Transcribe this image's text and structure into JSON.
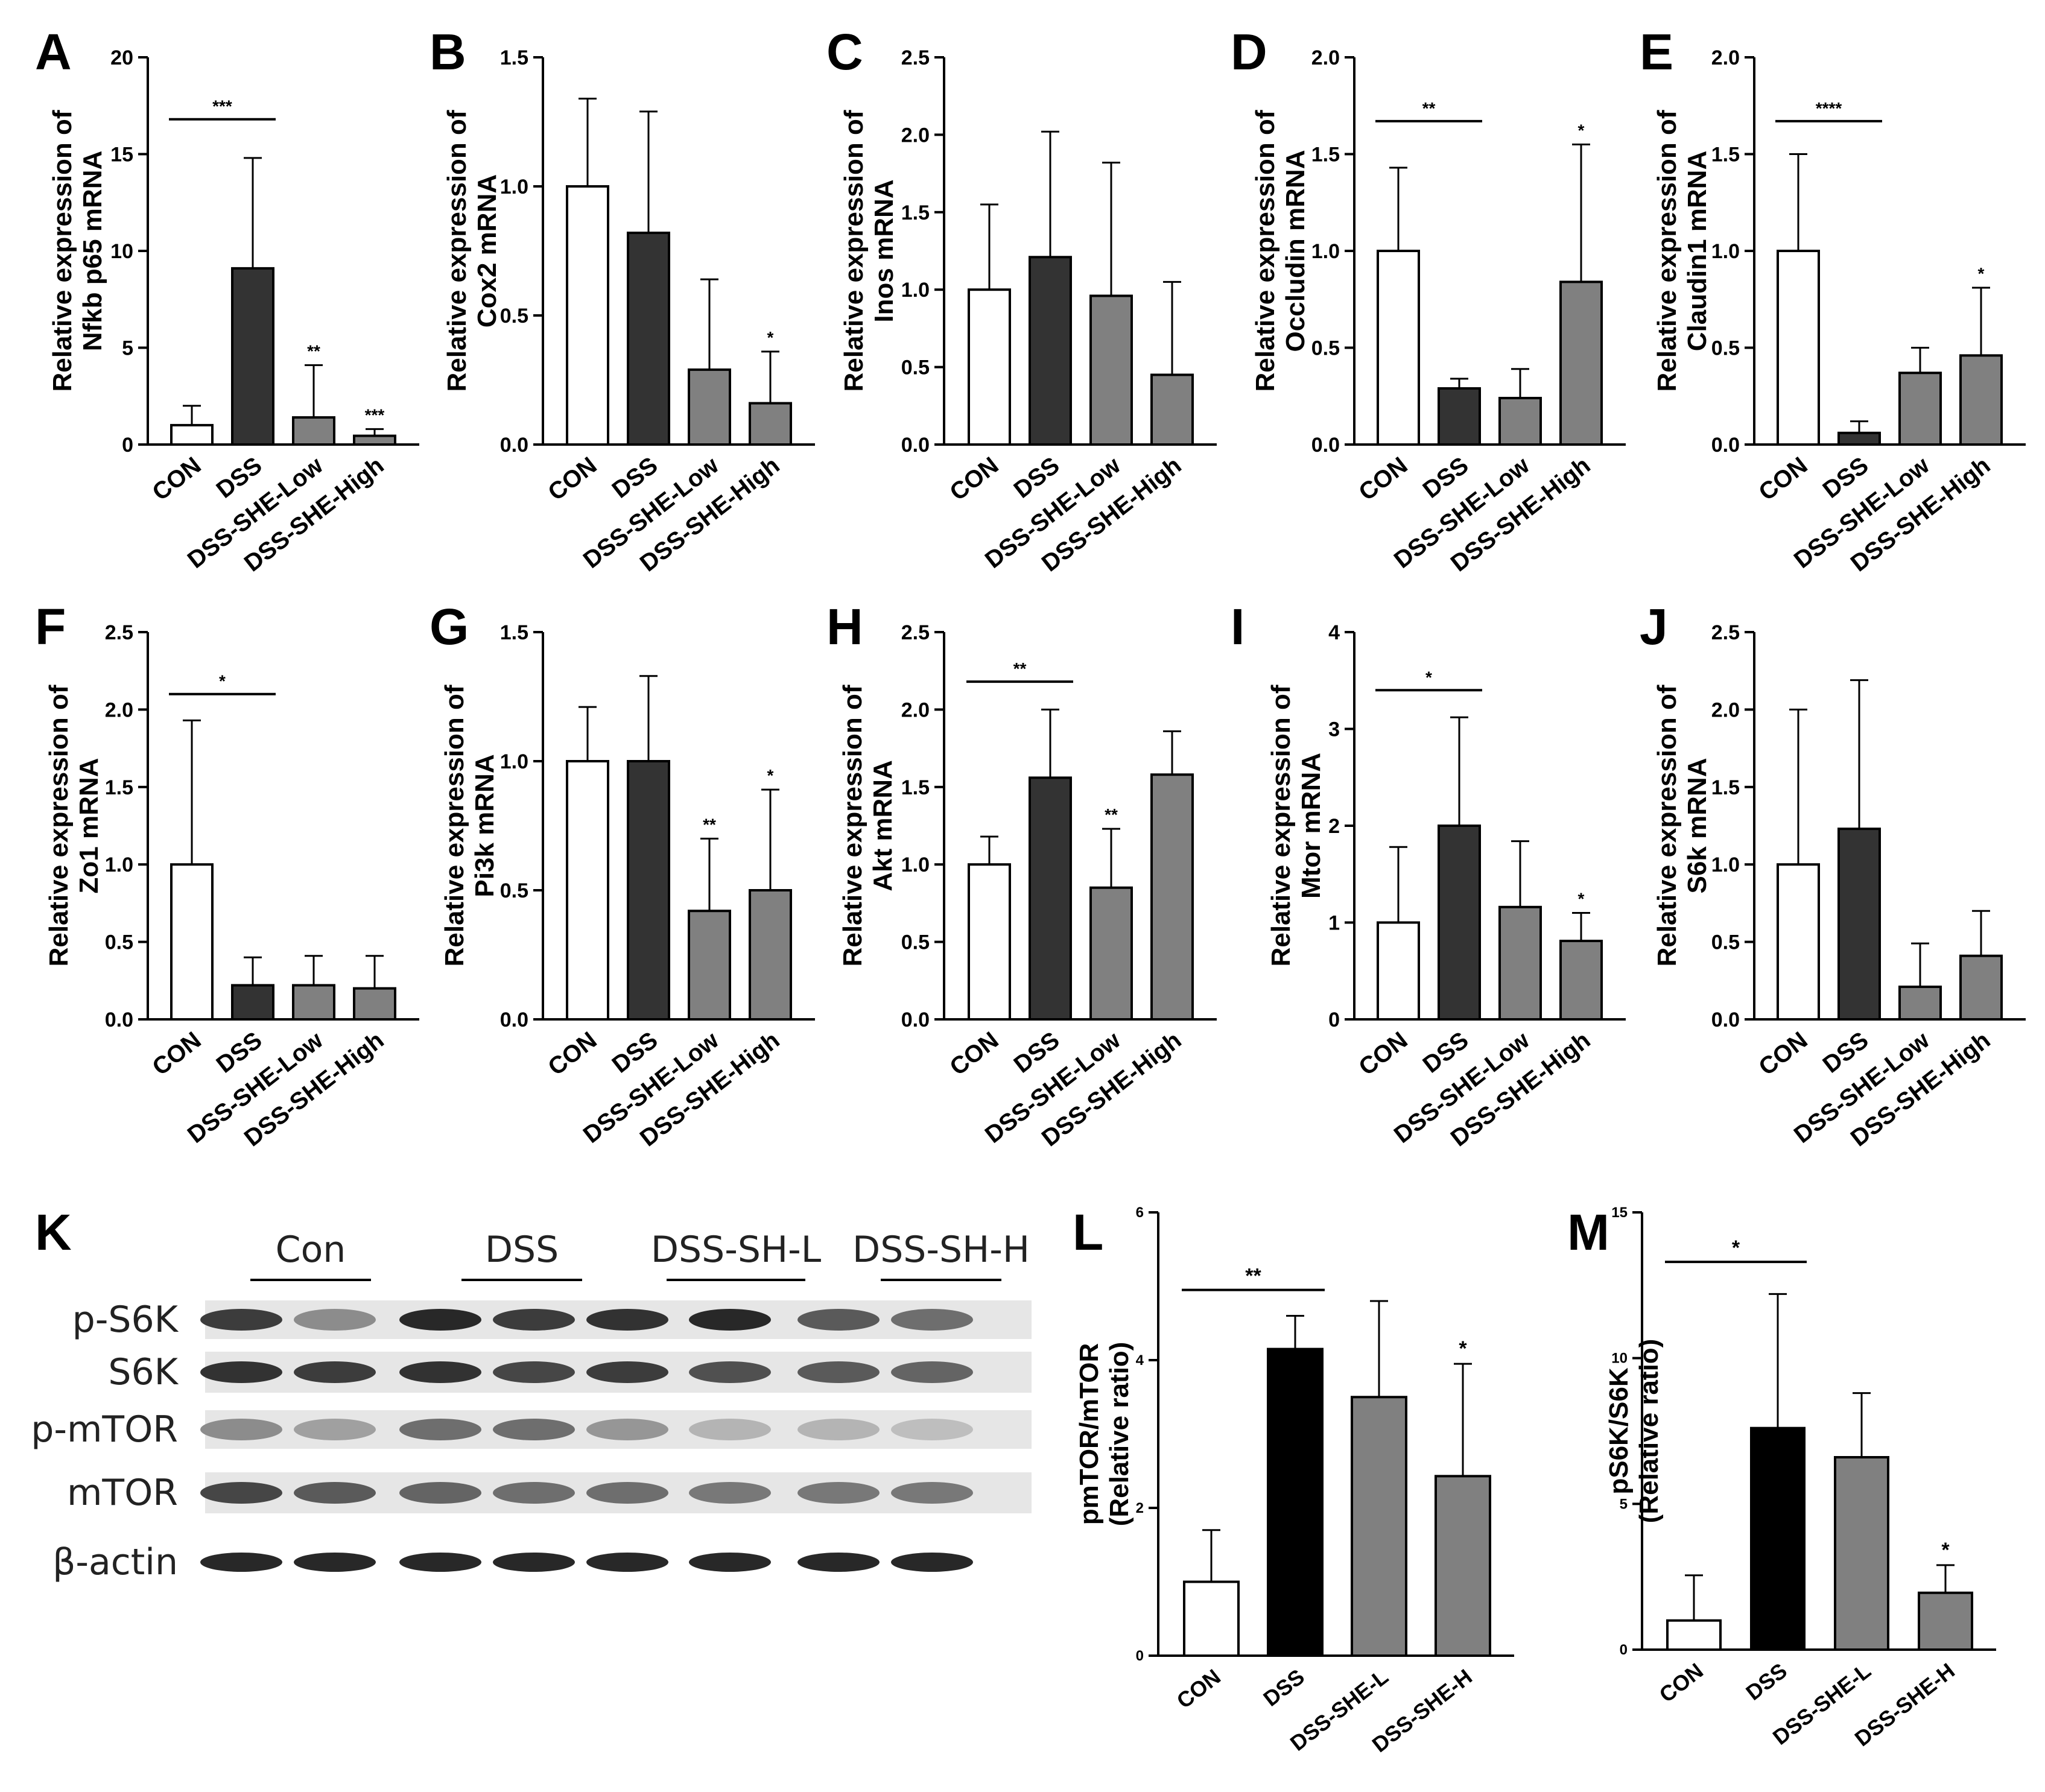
{
  "colors": {
    "con": "#ffffff",
    "dss": "#333333",
    "treated": "#808080",
    "dss_black": "#000000",
    "axis": "#000000"
  },
  "chart_data": [
    {
      "panel": "A",
      "type": "bar",
      "ylabel": [
        "Relative expression of",
        "Nfkb p65 mRNA"
      ],
      "ylim": [
        0,
        20
      ],
      "yticks": [
        "0",
        "5",
        "10",
        "15",
        "20"
      ],
      "categories": [
        "CON",
        "DSS",
        "DSS-SHE-Low",
        "DSS-SHE-High"
      ],
      "values": [
        1.0,
        9.1,
        1.4,
        0.45
      ],
      "errors": [
        1.0,
        5.7,
        2.7,
        0.35
      ],
      "sig": [
        "",
        "",
        "**",
        "***"
      ],
      "bracket": {
        "from": 0,
        "to": 1,
        "label": "***"
      }
    },
    {
      "panel": "B",
      "type": "bar",
      "ylabel": [
        "Relative expression of",
        "Cox2 mRNA"
      ],
      "ylim": [
        0,
        1.5
      ],
      "yticks": [
        "0.0",
        "0.5",
        "1.0",
        "1.5"
      ],
      "categories": [
        "CON",
        "DSS",
        "DSS-SHE-Low",
        "DSS-SHE-High"
      ],
      "values": [
        1.0,
        0.82,
        0.29,
        0.16
      ],
      "errors": [
        0.34,
        0.47,
        0.35,
        0.2
      ],
      "sig": [
        "",
        "",
        "",
        "*"
      ],
      "bracket": null
    },
    {
      "panel": "C",
      "type": "bar",
      "ylabel": [
        "Relative expression of",
        "Inos mRNA"
      ],
      "ylim": [
        0,
        2.5
      ],
      "yticks": [
        "0.0",
        "0.5",
        "1.0",
        "1.5",
        "2.0",
        "2.5"
      ],
      "categories": [
        "CON",
        "DSS",
        "DSS-SHE-Low",
        "DSS-SHE-High"
      ],
      "values": [
        1.0,
        1.21,
        0.96,
        0.45
      ],
      "errors": [
        0.55,
        0.81,
        0.86,
        0.6
      ],
      "sig": [
        "",
        "",
        "",
        ""
      ],
      "bracket": null
    },
    {
      "panel": "D",
      "type": "bar",
      "ylabel": [
        "Relative expression of",
        "Occludin mRNA"
      ],
      "ylim": [
        0,
        2.0
      ],
      "yticks": [
        "0.0",
        "0.5",
        "1.0",
        "1.5",
        "2.0"
      ],
      "categories": [
        "CON",
        "DSS",
        "DSS-SHE-Low",
        "DSS-SHE-High"
      ],
      "values": [
        1.0,
        0.29,
        0.24,
        0.84
      ],
      "errors": [
        0.43,
        0.05,
        0.15,
        0.71
      ],
      "sig": [
        "",
        "",
        "",
        "*"
      ],
      "bracket": {
        "from": 0,
        "to": 1,
        "label": "**"
      }
    },
    {
      "panel": "E",
      "type": "bar",
      "ylabel": [
        "Relative expression of",
        "Claudin1 mRNA"
      ],
      "ylim": [
        0,
        2.0
      ],
      "yticks": [
        "0.0",
        "0.5",
        "1.0",
        "1.5",
        "2.0"
      ],
      "categories": [
        "CON",
        "DSS",
        "DSS-SHE-Low",
        "DSS-SHE-High"
      ],
      "values": [
        1.0,
        0.06,
        0.37,
        0.46
      ],
      "errors": [
        0.5,
        0.06,
        0.13,
        0.35
      ],
      "sig": [
        "",
        "",
        "",
        "*"
      ],
      "bracket": {
        "from": 0,
        "to": 1,
        "label": "****"
      }
    },
    {
      "panel": "F",
      "type": "bar",
      "ylabel": [
        "Relative expression of",
        "Zo1 mRNA"
      ],
      "ylim": [
        0,
        2.5
      ],
      "yticks": [
        "0.0",
        "0.5",
        "1.0",
        "1.5",
        "2.0",
        "2.5"
      ],
      "categories": [
        "CON",
        "DSS",
        "DSS-SHE-Low",
        "DSS-SHE-High"
      ],
      "values": [
        1.0,
        0.22,
        0.22,
        0.2
      ],
      "errors": [
        0.93,
        0.18,
        0.19,
        0.21
      ],
      "sig": [
        "",
        "",
        "",
        ""
      ],
      "bracket": {
        "from": 0,
        "to": 1,
        "label": "*"
      }
    },
    {
      "panel": "G",
      "type": "bar",
      "ylabel": [
        "Relative expression of",
        "Pi3k mRNA"
      ],
      "ylim": [
        0,
        1.5
      ],
      "yticks": [
        "0.0",
        "0.5",
        "1.0",
        "1.5"
      ],
      "categories": [
        "CON",
        "DSS",
        "DSS-SHE-Low",
        "DSS-SHE-High"
      ],
      "values": [
        1.0,
        1.0,
        0.42,
        0.5
      ],
      "errors": [
        0.21,
        0.33,
        0.28,
        0.39
      ],
      "sig": [
        "",
        "",
        "**",
        "*"
      ],
      "bracket": null
    },
    {
      "panel": "H",
      "type": "bar",
      "ylabel": [
        "Relative expression of",
        "Akt mRNA"
      ],
      "ylim": [
        0,
        2.5
      ],
      "yticks": [
        "0.0",
        "0.5",
        "1.0",
        "1.5",
        "2.0",
        "2.5"
      ],
      "categories": [
        "CON",
        "DSS",
        "DSS-SHE-Low",
        "DSS-SHE-High"
      ],
      "values": [
        1.0,
        1.56,
        0.85,
        1.58
      ],
      "errors": [
        0.18,
        0.44,
        0.38,
        0.28
      ],
      "sig": [
        "",
        "",
        "**",
        ""
      ],
      "bracket": {
        "from": 0,
        "to": 1,
        "label": "**"
      }
    },
    {
      "panel": "I",
      "type": "bar",
      "ylabel": [
        "Relative expression of",
        "Mtor mRNA"
      ],
      "ylim": [
        0,
        4
      ],
      "yticks": [
        "0",
        "1",
        "2",
        "3",
        "4"
      ],
      "categories": [
        "CON",
        "DSS",
        "DSS-SHE-Low",
        "DSS-SHE-High"
      ],
      "values": [
        1.0,
        2.0,
        1.16,
        0.81
      ],
      "errors": [
        0.78,
        1.12,
        0.68,
        0.29
      ],
      "sig": [
        "",
        "",
        "",
        "*"
      ],
      "bracket": {
        "from": 0,
        "to": 1,
        "label": "*"
      }
    },
    {
      "panel": "J",
      "type": "bar",
      "ylabel": [
        "Relative expression of",
        "S6k mRNA"
      ],
      "ylim": [
        0,
        2.5
      ],
      "yticks": [
        "0.0",
        "0.5",
        "1.0",
        "1.5",
        "2.0",
        "2.5"
      ],
      "categories": [
        "CON",
        "DSS",
        "DSS-SHE-Low",
        "DSS-SHE-High"
      ],
      "values": [
        1.0,
        1.23,
        0.21,
        0.41
      ],
      "errors": [
        1.0,
        0.96,
        0.28,
        0.29
      ],
      "sig": [
        "",
        "",
        "",
        ""
      ],
      "bracket": null
    },
    {
      "panel": "L",
      "type": "bar",
      "ylabel": [
        "pmTOR/mTOR",
        "(Relative ratio)"
      ],
      "ylim": [
        0,
        6
      ],
      "yticks": [
        "0",
        "2",
        "4",
        "6"
      ],
      "categories": [
        "CON",
        "DSS",
        "DSS-SHE-L",
        "DSS-SHE-H"
      ],
      "values": [
        1.0,
        4.15,
        3.5,
        2.43
      ],
      "errors": [
        0.7,
        0.45,
        1.3,
        1.52
      ],
      "sig": [
        "",
        "",
        "",
        "*"
      ],
      "bracket": {
        "from": 0,
        "to": 1,
        "label": "**"
      }
    },
    {
      "panel": "M",
      "type": "bar",
      "ylabel": [
        "pS6K/S6K",
        "(Relative ratio)"
      ],
      "ylim": [
        0,
        15
      ],
      "yticks": [
        "0",
        "5",
        "10",
        "15"
      ],
      "categories": [
        "CON",
        "DSS",
        "DSS-SHE-L",
        "DSS-SHE-H"
      ],
      "values": [
        1.0,
        7.6,
        6.6,
        1.95
      ],
      "errors": [
        1.55,
        4.6,
        2.2,
        0.95
      ],
      "sig": [
        "",
        "",
        "",
        "*"
      ],
      "bracket": {
        "from": 0,
        "to": 1,
        "label": "*"
      }
    }
  ],
  "blot": {
    "panel": "K",
    "groups": [
      "Con",
      "DSS",
      "DSS-SH-L",
      "DSS-SH-H"
    ],
    "rows": [
      "p-S6K",
      "S6K",
      "p-mTOR",
      "mTOR",
      "β-actin"
    ],
    "band_intensity": [
      [
        0.85,
        0.45,
        0.95,
        0.85,
        0.9,
        0.95,
        0.7,
        0.6
      ],
      [
        0.9,
        0.85,
        0.9,
        0.8,
        0.85,
        0.75,
        0.7,
        0.65
      ],
      [
        0.45,
        0.35,
        0.6,
        0.6,
        0.4,
        0.25,
        0.25,
        0.2
      ],
      [
        0.8,
        0.7,
        0.65,
        0.6,
        0.6,
        0.55,
        0.55,
        0.55
      ],
      [
        0.95,
        0.95,
        0.95,
        0.95,
        0.95,
        0.95,
        0.95,
        0.95
      ]
    ]
  }
}
